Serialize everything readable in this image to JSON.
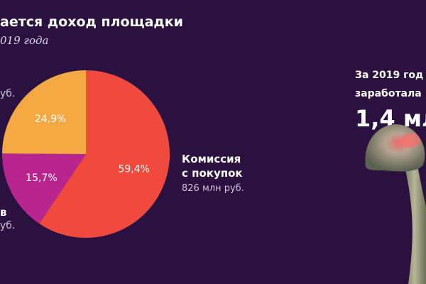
{
  "chart_data": {
    "type": "pie",
    "title": "ается доход площадки",
    "subtitle": "019 года",
    "slices": [
      {
        "value_label": "59,4%",
        "value": 59.4,
        "color": "#f04a3e"
      },
      {
        "value_label": "15,7%",
        "value": 15.7,
        "color": "#b8258f"
      },
      {
        "value_label": "24,9%",
        "value": 24.9,
        "color": "#f3a843"
      }
    ],
    "annotations": {
      "main_label_line1": "Комиссия",
      "main_label_line2": "с покупок",
      "main_value": "826 млн руб.",
      "left_top_fragment": "уб.",
      "left_bottom_fragment_bold": "в",
      "left_bottom_fragment": "уб."
    }
  },
  "side_note": {
    "line1": "За 2019 год п",
    "line2": "заработала",
    "big": "1,4 мл"
  },
  "colors": {
    "background": "#2a1140",
    "commission": "#f04a3e",
    "magenta": "#b8258f",
    "orange": "#f3a843"
  }
}
